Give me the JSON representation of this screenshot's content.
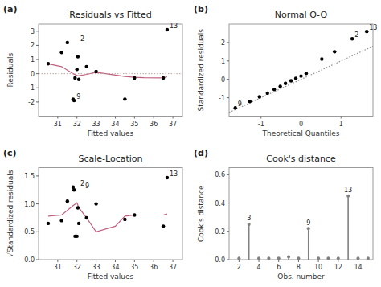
{
  "chart_data": [
    {
      "type": "scatter",
      "panel_label": "(a)",
      "title": "Residuals vs Fitted",
      "x_label": "Fitted values",
      "y_label": "Residuals",
      "series": [
        {
          "type": "scatter",
          "x": [
            30.5,
            31.2,
            31.5,
            31.8,
            31.85,
            31.9,
            32.0,
            32.05,
            32.1,
            32.5,
            33.0,
            34.5,
            35.0,
            36.5,
            36.7
          ],
          "values": [
            0.7,
            1.5,
            2.2,
            -1.8,
            -1.9,
            -0.3,
            0.3,
            1.2,
            -0.4,
            0.5,
            0.15,
            -1.8,
            -0.3,
            -0.3,
            3.1
          ],
          "color": "#000000"
        },
        {
          "type": "line",
          "x": [
            30.5,
            31.2,
            31.8,
            32.05,
            32.5,
            33.0,
            33.5,
            34.5,
            35.0,
            35.5,
            36.5,
            36.7
          ],
          "values": [
            0.7,
            0.5,
            0.0,
            -0.15,
            -0.05,
            0.1,
            0.0,
            -0.2,
            -0.25,
            -0.28,
            -0.3,
            -0.22
          ],
          "color": "#c06080"
        },
        {
          "type": "hline",
          "values": [
            0
          ],
          "color": "#c0a0a0",
          "line_style": "dotted"
        }
      ],
      "annotations": [
        {
          "text": "2",
          "x": 32.05,
          "y": 2.2
        },
        {
          "text": "9",
          "x": 31.85,
          "y": -1.9
        },
        {
          "text": "13",
          "x": 36.7,
          "y": 3.1
        }
      ],
      "xlim": [
        30.0,
        37.5
      ],
      "ylim": [
        -3,
        3.5
      ],
      "xticks": [
        31,
        32,
        33,
        34,
        35,
        36,
        37
      ],
      "yticks": [
        -2,
        -1,
        0,
        1,
        2,
        3
      ],
      "grid": false
    },
    {
      "type": "scatter",
      "panel_label": "(b)",
      "title": "Normal Q-Q",
      "x_label": "Theoretical Quantiles",
      "y_label": "Standardized residuals",
      "series": [
        {
          "type": "scatter",
          "x": [
            -1.645,
            -1.28,
            -1.04,
            -0.84,
            -0.67,
            -0.52,
            -0.39,
            -0.25,
            -0.13,
            0.0,
            0.13,
            0.52,
            0.84,
            1.28,
            1.645
          ],
          "values": [
            -1.55,
            -1.2,
            -0.95,
            -0.75,
            -0.55,
            -0.38,
            -0.22,
            -0.08,
            0.05,
            0.18,
            0.32,
            1.1,
            1.5,
            2.2,
            2.6
          ],
          "color": "#000000"
        },
        {
          "type": "line",
          "x": [
            -1.8,
            1.8
          ],
          "values": [
            -1.8,
            1.8
          ],
          "color": "#909090",
          "line_style": "dotted"
        }
      ],
      "annotations": [
        {
          "text": "9",
          "x": -1.645,
          "y": -1.55
        },
        {
          "text": "2",
          "x": 1.28,
          "y": 2.2
        },
        {
          "text": "13",
          "x": 1.645,
          "y": 2.6
        }
      ],
      "xlim": [
        -1.8,
        1.8
      ],
      "ylim": [
        -2,
        3
      ],
      "xticks": [
        -1,
        0,
        1
      ],
      "yticks": [
        -1,
        0,
        1,
        2
      ],
      "grid": false
    },
    {
      "type": "scatter",
      "panel_label": "(c)",
      "title": "Scale-Location",
      "x_label": "Fitted values",
      "y_label": "√Standardized residuals",
      "series": [
        {
          "type": "scatter",
          "x": [
            30.5,
            31.2,
            31.5,
            31.8,
            31.85,
            31.9,
            32.0,
            32.05,
            32.1,
            32.5,
            33.0,
            34.5,
            35.0,
            36.5,
            36.7
          ],
          "values": [
            0.65,
            0.7,
            1.05,
            1.3,
            1.25,
            0.42,
            0.42,
            0.93,
            0.65,
            0.75,
            1.0,
            0.72,
            0.8,
            0.6,
            1.47
          ],
          "color": "#000000"
        },
        {
          "type": "line",
          "x": [
            30.5,
            31.2,
            31.8,
            32.0,
            32.1,
            32.5,
            33.0,
            34.0,
            34.5,
            35.0,
            35.5,
            36.5,
            36.7
          ],
          "values": [
            0.78,
            0.8,
            0.97,
            1.02,
            0.93,
            0.75,
            0.5,
            0.6,
            0.78,
            0.8,
            0.8,
            0.8,
            0.82
          ],
          "color": "#c06080"
        }
      ],
      "annotations": [
        {
          "text": "2",
          "x": 32.05,
          "y": 1.3
        },
        {
          "text": "9",
          "x": 32.1,
          "y": 1.25
        },
        {
          "text": "13",
          "x": 36.7,
          "y": 1.47
        }
      ],
      "xlim": [
        30.0,
        37.5
      ],
      "ylim": [
        0,
        1.65
      ],
      "xticks": [
        31,
        32,
        33,
        34,
        35,
        36,
        37
      ],
      "yticks": [
        {
          "value": 0.0,
          "label": "0.0"
        },
        0.5,
        {
          "value": 1.0,
          "label": "1.0"
        },
        1.5
      ],
      "grid": false
    },
    {
      "type": "stem",
      "panel_label": "(d)",
      "title": "Cook's distance",
      "x_label": "Obs. number",
      "y_label": "Cook's distance",
      "series": [
        {
          "type": "stem",
          "x": [
            2,
            3,
            4,
            5,
            6,
            7,
            8,
            9,
            10,
            11,
            12,
            13,
            14,
            15
          ],
          "values": [
            0.01,
            0.25,
            0.01,
            0.01,
            0.01,
            0.02,
            0.01,
            0.22,
            0.01,
            0.01,
            0.01,
            0.45,
            0.01,
            0.01
          ],
          "color": "#808080"
        }
      ],
      "annotations": [
        {
          "text": "3",
          "x": 3,
          "y": 0.27
        },
        {
          "text": "9",
          "x": 9,
          "y": 0.24
        },
        {
          "text": "13",
          "x": 13,
          "y": 0.47
        }
      ],
      "xlim": [
        1,
        15.5
      ],
      "ylim": [
        0,
        0.65
      ],
      "xticks": [
        2,
        4,
        6,
        8,
        10,
        12,
        14
      ],
      "yticks": [
        {
          "value": 0.0,
          "label": "0.0"
        },
        0.2,
        0.4,
        0.6
      ],
      "grid": false
    }
  ]
}
